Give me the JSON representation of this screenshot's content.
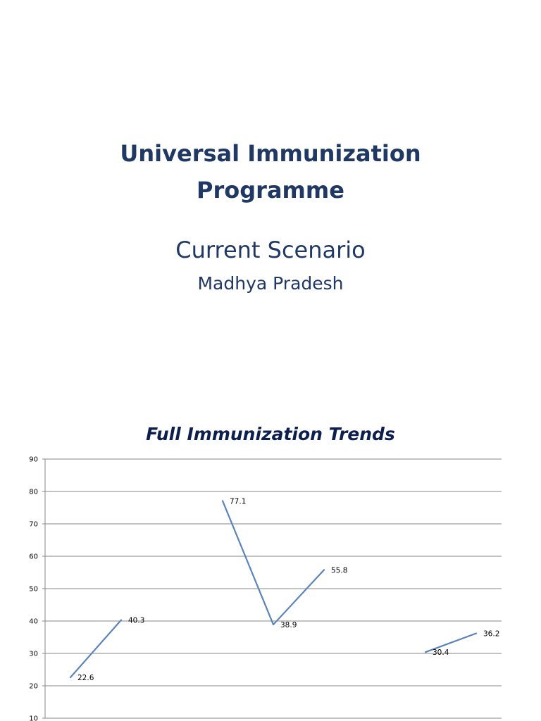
{
  "slide": {
    "title_line1": "Universal Immunization",
    "title_line2": "Programme",
    "subtitle": "Current Scenario",
    "region": "Madhya Pradesh"
  },
  "chart_data": {
    "type": "line",
    "title": "Full Immunization Trends",
    "xlabel": "",
    "ylabel": "",
    "ylim": [
      10,
      90
    ],
    "y_ticks": [
      10,
      20,
      30,
      40,
      50,
      60,
      70,
      80,
      90
    ],
    "grid": true,
    "line_color": "#5b84b9",
    "segments": [
      {
        "points": [
          {
            "x": 1,
            "y": 22.6
          },
          {
            "x": 2,
            "y": 40.3
          }
        ]
      },
      {
        "points": [
          {
            "x": 4,
            "y": 77.1
          },
          {
            "x": 5,
            "y": 38.9
          },
          {
            "x": 6,
            "y": 55.8
          }
        ]
      },
      {
        "points": [
          {
            "x": 8,
            "y": 30.4
          },
          {
            "x": 9,
            "y": 36.2
          }
        ]
      }
    ]
  }
}
